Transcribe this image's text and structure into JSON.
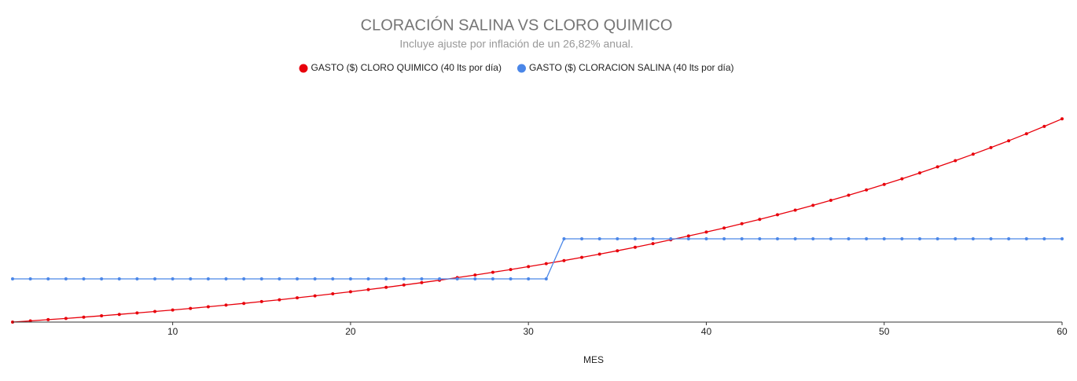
{
  "chart_data": {
    "type": "line",
    "title": "CLORACIÓN SALINA VS CLORO QUIMICO",
    "subtitle": "Incluye ajuste por inflación de un 26,82% anual.",
    "x_label": "MES",
    "x": [
      1,
      2,
      3,
      4,
      5,
      6,
      7,
      8,
      9,
      10,
      11,
      12,
      13,
      14,
      15,
      16,
      17,
      18,
      19,
      20,
      21,
      22,
      23,
      24,
      25,
      26,
      27,
      28,
      29,
      30,
      31,
      32,
      33,
      34,
      35,
      36,
      37,
      38,
      39,
      40,
      41,
      42,
      43,
      44,
      45,
      46,
      47,
      48,
      49,
      50,
      51,
      52,
      53,
      54,
      55,
      56,
      57,
      58,
      59,
      60
    ],
    "xlim": [
      1,
      60
    ],
    "xticks": [
      10,
      20,
      30,
      40,
      50,
      60
    ],
    "ylim": [
      0,
      270
    ],
    "legend": "top",
    "series": [
      {
        "name": "GASTO ($) CLORO QUIMICO (40 lts por día)",
        "color": "#e8000b",
        "values": [
          0,
          1.5,
          3.1,
          4.6,
          6.3,
          8.0,
          9.8,
          11.6,
          13.5,
          15.4,
          17.4,
          19.5,
          21.6,
          23.8,
          26.1,
          28.4,
          30.9,
          33.4,
          36.0,
          38.6,
          41.4,
          44.2,
          47.2,
          50.2,
          53.3,
          56.6,
          59.9,
          63.4,
          66.9,
          70.6,
          74.4,
          78.3,
          82.4,
          86.5,
          90.8,
          95.3,
          99.9,
          104.7,
          109.6,
          114.6,
          119.8,
          125.2,
          130.8,
          136.6,
          142.5,
          148.6,
          155.0,
          161.5,
          168.3,
          175.2,
          182.4,
          189.9,
          197.6,
          205.5,
          213.7,
          222.1,
          230.8,
          239.8,
          249.1,
          258.7
        ]
      },
      {
        "name": "GASTO ($) CLORACION SALINA (40 lts por día)",
        "color": "#4a86e8",
        "values": [
          55,
          55,
          55,
          55,
          55,
          55,
          55,
          55,
          55,
          55,
          55,
          55,
          55,
          55,
          55,
          55,
          55,
          55,
          55,
          55,
          55,
          55,
          55,
          55,
          55,
          55,
          55,
          55,
          55,
          55,
          55,
          106,
          106,
          106,
          106,
          106,
          106,
          106,
          106,
          106,
          106,
          106,
          106,
          106,
          106,
          106,
          106,
          106,
          106,
          106,
          106,
          106,
          106,
          106,
          106,
          106,
          106,
          106,
          106,
          106
        ]
      }
    ]
  }
}
